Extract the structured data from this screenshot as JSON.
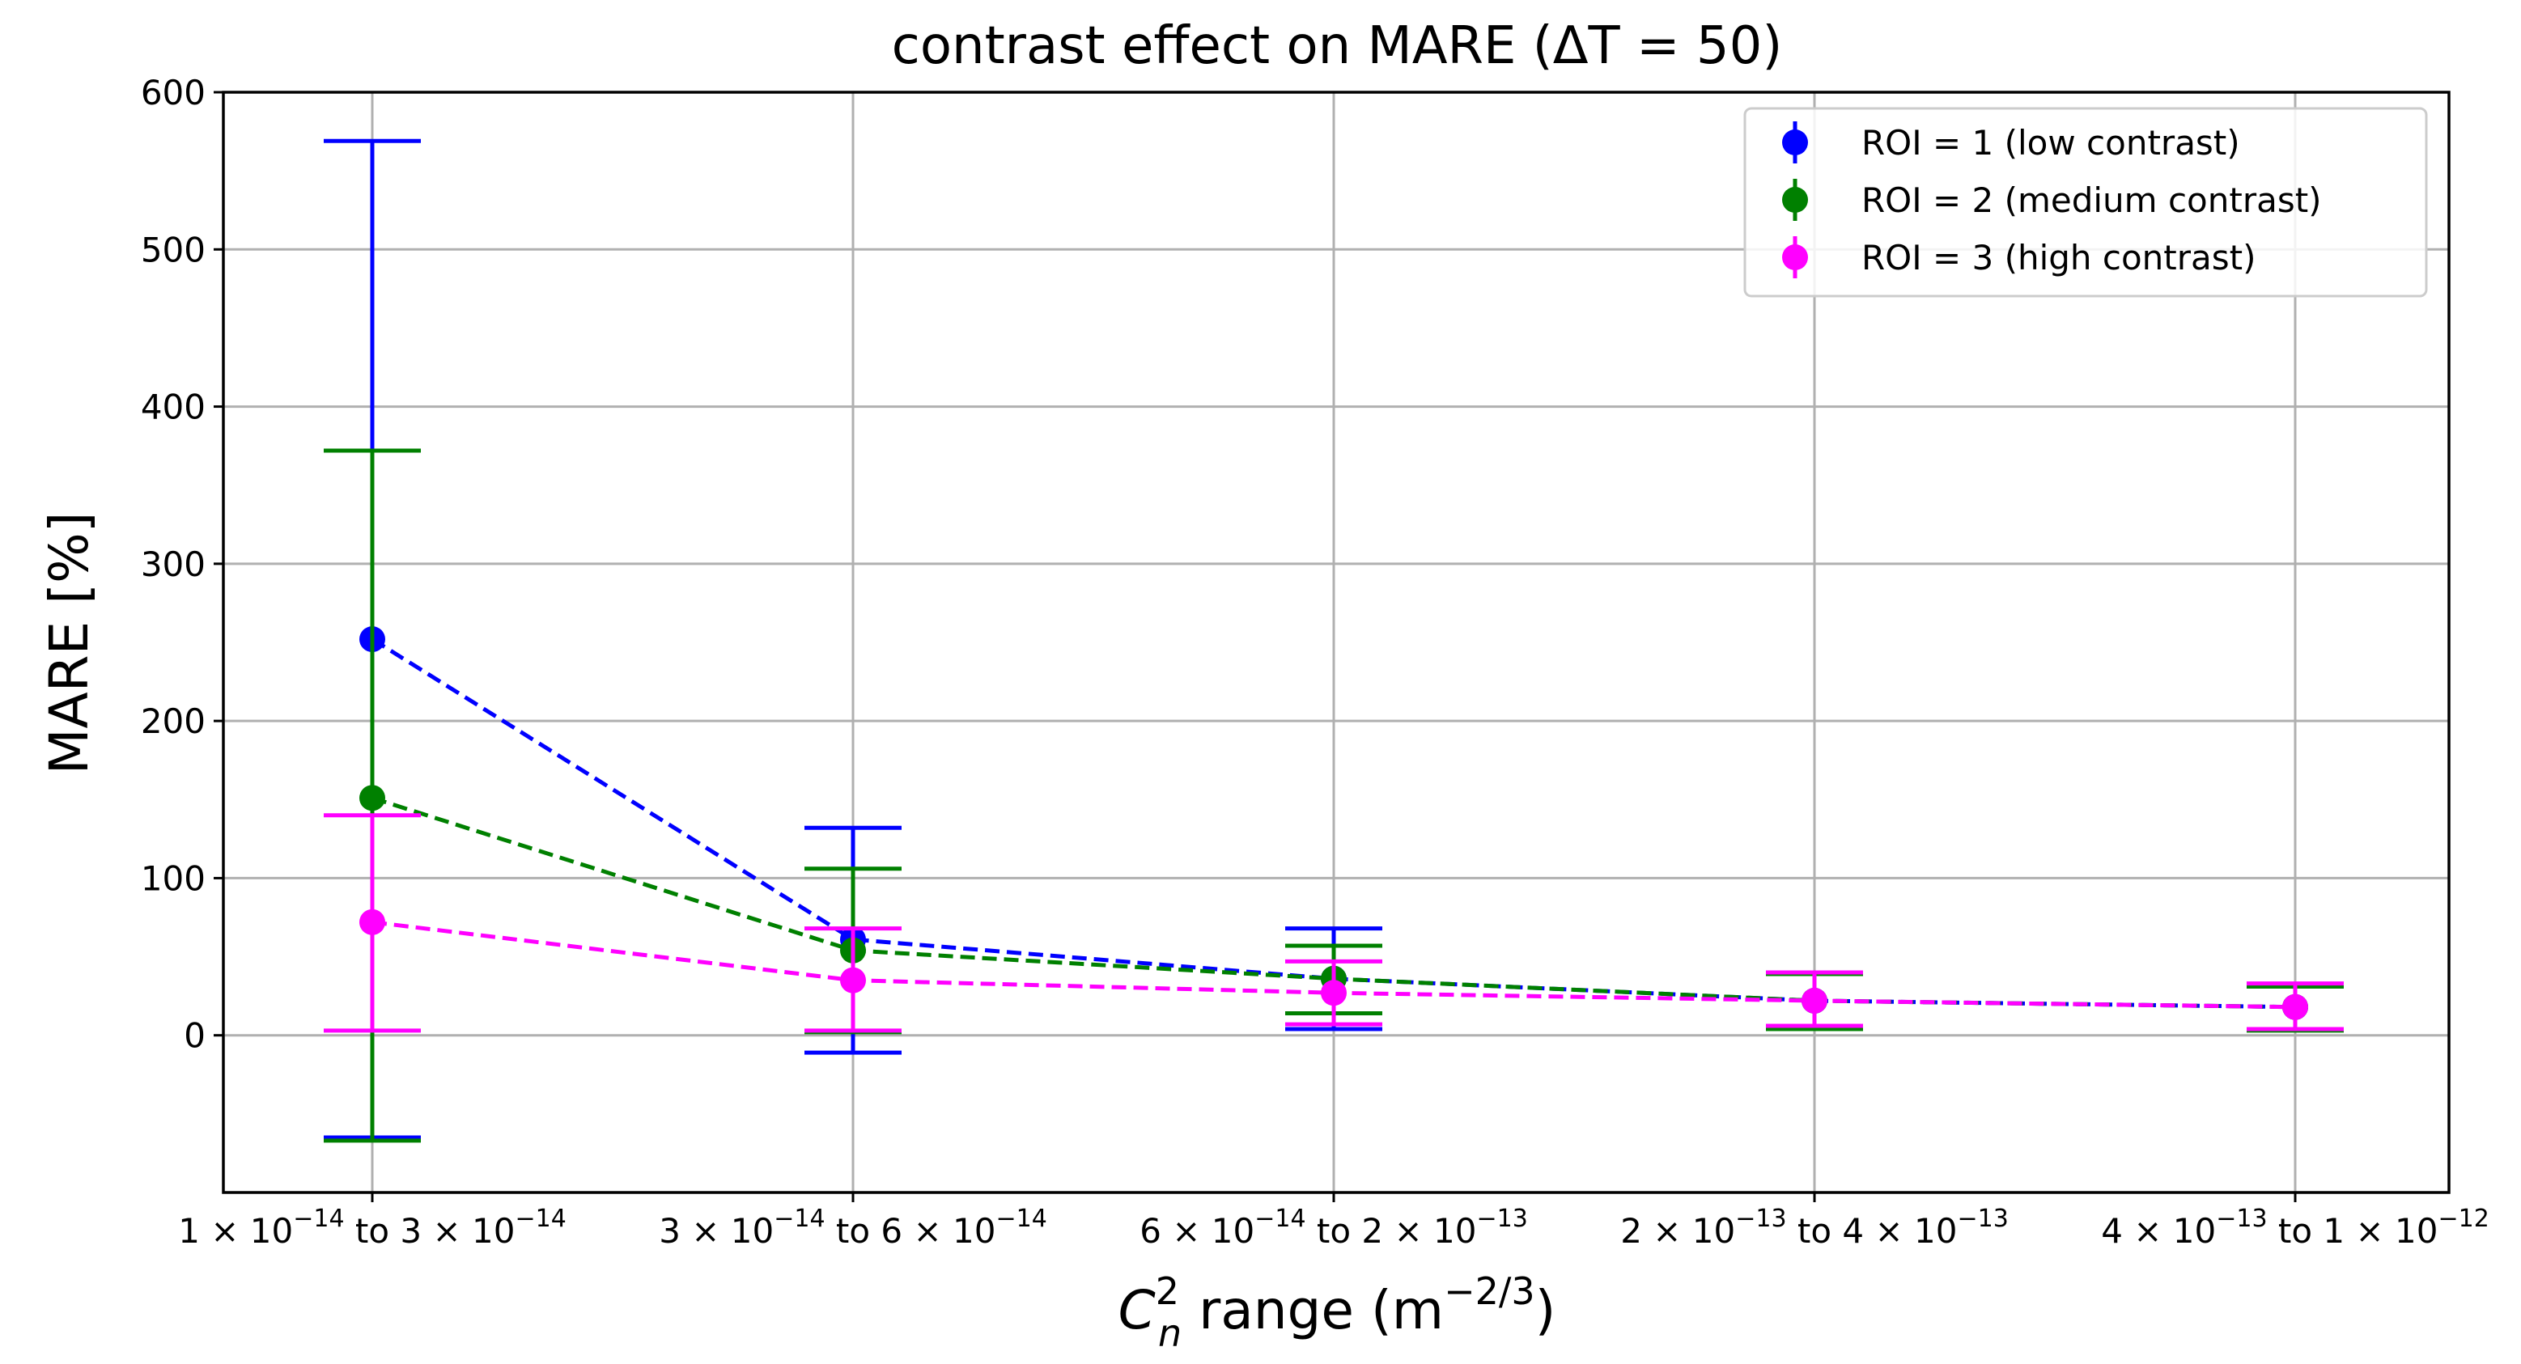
{
  "chart_data": {
    "type": "line",
    "title": "contrast effect on MARE (ΔT = 50)",
    "ylabel": "MARE [%]",
    "xlabel": {
      "symbol_base": "C",
      "symbol_sup": "2",
      "symbol_sub": "n",
      "text": " range (m",
      "unit_sup": "−2/3",
      "close": ")"
    },
    "ylim": [
      -100,
      600
    ],
    "yticks": [
      0,
      100,
      200,
      300,
      400,
      500,
      600
    ],
    "grid": true,
    "legend_position": "top-right",
    "categories": [
      {
        "a": "1",
        "a_exp": "−14",
        "b": "3",
        "b_exp": "−14"
      },
      {
        "a": "3",
        "a_exp": "−14",
        "b": "6",
        "b_exp": "−14"
      },
      {
        "a": "6",
        "a_exp": "−14",
        "b": "2",
        "b_exp": "−13"
      },
      {
        "a": "2",
        "a_exp": "−13",
        "b": "4",
        "b_exp": "−13"
      },
      {
        "a": "4",
        "a_exp": "−13",
        "b": "1",
        "b_exp": "−12"
      }
    ],
    "category_connector": " to ",
    "times_symbol": "×",
    "base": "10",
    "series": [
      {
        "name": "ROI = 1 (low contrast)",
        "color": "#0000ff",
        "values": [
          252,
          61,
          36,
          22,
          18
        ],
        "err_low": [
          -65,
          -11,
          4,
          4,
          4
        ],
        "err_high": [
          569,
          132,
          68,
          40,
          32
        ]
      },
      {
        "name": "ROI = 2 (medium contrast)",
        "color": "#008000",
        "values": [
          151,
          54,
          36,
          22,
          18
        ],
        "err_low": [
          -67,
          2,
          14,
          4,
          3
        ],
        "err_high": [
          372,
          106,
          57,
          39,
          31
        ]
      },
      {
        "name": "ROI = 3 (high contrast)",
        "color": "#ff00ff",
        "values": [
          72,
          35,
          27,
          22,
          18
        ],
        "err_low": [
          3,
          3,
          7,
          6,
          4
        ],
        "err_high": [
          140,
          68,
          47,
          40,
          33
        ]
      }
    ]
  }
}
